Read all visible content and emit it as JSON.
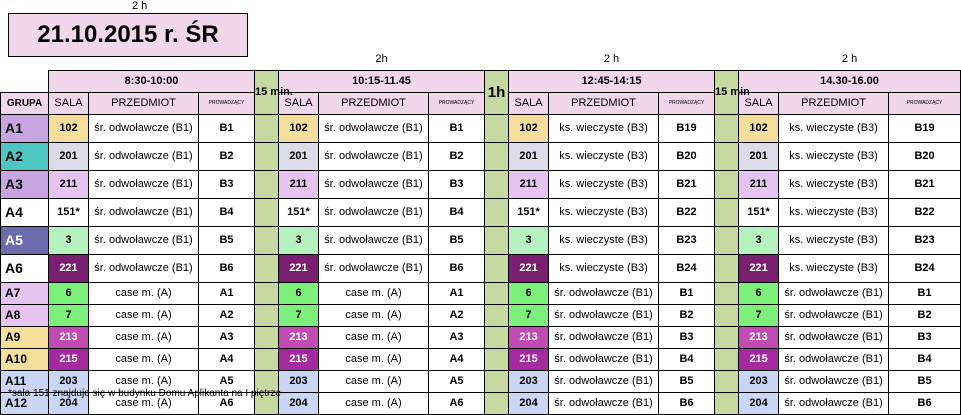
{
  "top": {
    "two_h": "2 h",
    "date": "21.10.2015 r. ŚR"
  },
  "header": {
    "label_2h_b2": "2h",
    "label_2h_b3": "2 h",
    "label_2h_b4": "2 h",
    "grupa": "GRUPA",
    "break1": "15 min.",
    "break2": "1h",
    "break3": "15 min",
    "blocks": [
      {
        "time": "8:30-10:00",
        "sala": "SALA",
        "przedmiot": "PRZEDMIOT",
        "prow": "PROWADZĄCY"
      },
      {
        "time": "10:15-11.45",
        "sala": "SALA",
        "przedmiot": "PRZEDMIOT",
        "prow": "PROWADZĄCY"
      },
      {
        "time": "12:45-14:15",
        "sala": "SALA",
        "przedmiot": "PRZEDMIOT",
        "prow": "PROWADZĄCY"
      },
      {
        "time": "14.30-16.00",
        "sala": "SALA",
        "przedmiot": "PRZEDMIOT",
        "prow": "PROWADZĄCY"
      }
    ]
  },
  "colors": {
    "pink": "#f2d6ec",
    "break_green": "#c6d9a0"
  },
  "rows": [
    {
      "group": "A1",
      "group_color": "#c8a5e0",
      "cells": [
        {
          "sala": "102",
          "sc": "#f5dd9c",
          "subj": "śr. odwoławcze (B1)",
          "prow": "B1"
        },
        {
          "sala": "102",
          "sc": "#f5dd9c",
          "subj": "śr. odwoławcze (B1)",
          "prow": "B1"
        },
        {
          "sala": "102",
          "sc": "#f5dd9c",
          "subj": "ks. wieczyste (B3)",
          "prow": "B19"
        },
        {
          "sala": "102",
          "sc": "#f5dd9c",
          "subj": "ks. wieczyste (B3)",
          "prow": "B19"
        }
      ]
    },
    {
      "group": "A2",
      "group_color": "#4ec6c3",
      "cells": [
        {
          "sala": "201",
          "sc": "#dddde9",
          "subj": "śr. odwoławcze (B1)",
          "prow": "B2"
        },
        {
          "sala": "201",
          "sc": "#dddde9",
          "subj": "śr. odwoławcze (B1)",
          "prow": "B2"
        },
        {
          "sala": "201",
          "sc": "#dddde9",
          "subj": "ks. wieczyste (B3)",
          "prow": "B20"
        },
        {
          "sala": "201",
          "sc": "#dddde9",
          "subj": "ks. wieczyste (B3)",
          "prow": "B20"
        }
      ]
    },
    {
      "group": "A3",
      "group_color": "#c8a5e0",
      "cells": [
        {
          "sala": "211",
          "sc": "#e6c3f0",
          "subj": "śr. odwoławcze (B1)",
          "prow": "B3"
        },
        {
          "sala": "211",
          "sc": "#e6c3f0",
          "subj": "śr. odwoławcze (B1)",
          "prow": "B3"
        },
        {
          "sala": "211",
          "sc": "#e6c3f0",
          "subj": "ks. wieczyste (B3)",
          "prow": "B21"
        },
        {
          "sala": "211",
          "sc": "#e6c3f0",
          "subj": "ks. wieczyste (B3)",
          "prow": "B21"
        }
      ]
    },
    {
      "group": "A4",
      "group_color": "#ffffff",
      "cells": [
        {
          "sala": "151*",
          "sc": "#ffffff",
          "subj": "śr. odwoławcze (B1)",
          "prow": "B4"
        },
        {
          "sala": "151*",
          "sc": "#ffffff",
          "subj": "śr. odwoławcze (B1)",
          "prow": "B4"
        },
        {
          "sala": "151*",
          "sc": "#ffffff",
          "subj": "ks. wieczyste (B3)",
          "prow": "B22"
        },
        {
          "sala": "151*",
          "sc": "#ffffff",
          "subj": "ks. wieczyste (B3)",
          "prow": "B22"
        }
      ]
    },
    {
      "group": "A5",
      "group_color": "#6b6bad",
      "cells": [
        {
          "sala": "3",
          "sc": "#b6f2c0",
          "subj": "śr. odwoławcze (B1)",
          "prow": "B5"
        },
        {
          "sala": "3",
          "sc": "#b6f2c0",
          "subj": "śr. odwoławcze (B1)",
          "prow": "B5"
        },
        {
          "sala": "3",
          "sc": "#b6f2c0",
          "subj": "ks. wieczyste (B3)",
          "prow": "B23"
        },
        {
          "sala": "3",
          "sc": "#b6f2c0",
          "subj": "ks. wieczyste (B3)",
          "prow": "B23"
        }
      ]
    },
    {
      "group": "A6",
      "group_color": "#ffffff",
      "cells": [
        {
          "sala": "221",
          "sc": "#7a1f6f",
          "subj": "śr. odwoławcze (B1)",
          "prow": "B6"
        },
        {
          "sala": "221",
          "sc": "#7a1f6f",
          "subj": "śr. odwoławcze (B1)",
          "prow": "B6"
        },
        {
          "sala": "221",
          "sc": "#7a1f6f",
          "subj": "ks. wieczyste (B3)",
          "prow": "B24"
        },
        {
          "sala": "221",
          "sc": "#7a1f6f",
          "subj": "ks. wieczyste (B3)",
          "prow": "B24"
        }
      ]
    },
    {
      "group": "A7",
      "group_color": "#e6c3f0",
      "cells": [
        {
          "sala": "6",
          "sc": "#7cf07a",
          "subj": "case m. (A)",
          "prow": "A1"
        },
        {
          "sala": "6",
          "sc": "#7cf07a",
          "subj": "case m. (A)",
          "prow": "A1"
        },
        {
          "sala": "6",
          "sc": "#7cf07a",
          "subj": "śr. odwoławcze (B1)",
          "prow": "B1"
        },
        {
          "sala": "6",
          "sc": "#7cf07a",
          "subj": "śr. odwoławcze (B1)",
          "prow": "B1"
        }
      ]
    },
    {
      "group": "A8",
      "group_color": "#e6c3f0",
      "cells": [
        {
          "sala": "7",
          "sc": "#7cf07a",
          "subj": "case m. (A)",
          "prow": "A2"
        },
        {
          "sala": "7",
          "sc": "#7cf07a",
          "subj": "case m. (A)",
          "prow": "A2"
        },
        {
          "sala": "7",
          "sc": "#7cf07a",
          "subj": "śr. odwoławcze (B1)",
          "prow": "B2"
        },
        {
          "sala": "7",
          "sc": "#7cf07a",
          "subj": "śr. odwoławcze (B1)",
          "prow": "B2"
        }
      ]
    },
    {
      "group": "A9",
      "group_color": "#f5dd9c",
      "cells": [
        {
          "sala": "213",
          "sc": "#c24ab3",
          "subj": "case m. (A)",
          "prow": "A3"
        },
        {
          "sala": "213",
          "sc": "#c24ab3",
          "subj": "case m. (A)",
          "prow": "A3"
        },
        {
          "sala": "213",
          "sc": "#c24ab3",
          "subj": "śr. odwoławcze (B1)",
          "prow": "B3"
        },
        {
          "sala": "213",
          "sc": "#c24ab3",
          "subj": "śr. odwoławcze (B1)",
          "prow": "B3"
        }
      ]
    },
    {
      "group": "A10",
      "group_color": "#f5dd9c",
      "cells": [
        {
          "sala": "215",
          "sc": "#a52aa0",
          "subj": "case m. (A)",
          "prow": "A4"
        },
        {
          "sala": "215",
          "sc": "#a52aa0",
          "subj": "case m. (A)",
          "prow": "A4"
        },
        {
          "sala": "215",
          "sc": "#a52aa0",
          "subj": "śr. odwoławcze (B1)",
          "prow": "B4"
        },
        {
          "sala": "215",
          "sc": "#a52aa0",
          "subj": "śr. odwoławcze (B1)",
          "prow": "B4"
        }
      ]
    },
    {
      "group": "A11",
      "group_color": "#c9d6f5",
      "cells": [
        {
          "sala": "203",
          "sc": "#c9d6f5",
          "subj": "case m. (A)",
          "prow": "A5"
        },
        {
          "sala": "203",
          "sc": "#c9d6f5",
          "subj": "case m. (A)",
          "prow": "A5"
        },
        {
          "sala": "203",
          "sc": "#c9d6f5",
          "subj": "śr. odwoławcze (B1)",
          "prow": "B5"
        },
        {
          "sala": "203",
          "sc": "#c9d6f5",
          "subj": "śr. odwoławcze (B1)",
          "prow": "B5"
        }
      ]
    },
    {
      "group": "A12",
      "group_color": "#c9d6f5",
      "cells": [
        {
          "sala": "204",
          "sc": "#c9d6f5",
          "subj": "case m. (A)",
          "prow": "A6"
        },
        {
          "sala": "204",
          "sc": "#c9d6f5",
          "subj": "case m. (A)",
          "prow": "A6"
        },
        {
          "sala": "204",
          "sc": "#c9d6f5",
          "subj": "śr. odwoławcze (B1)",
          "prow": "B6"
        },
        {
          "sala": "204",
          "sc": "#c9d6f5",
          "subj": "śr. odwoławcze (B1)",
          "prow": "B6"
        }
      ]
    }
  ],
  "footnote": "*sala 151 znajduje się w budynku Domu Aplikanta na I piętrze"
}
